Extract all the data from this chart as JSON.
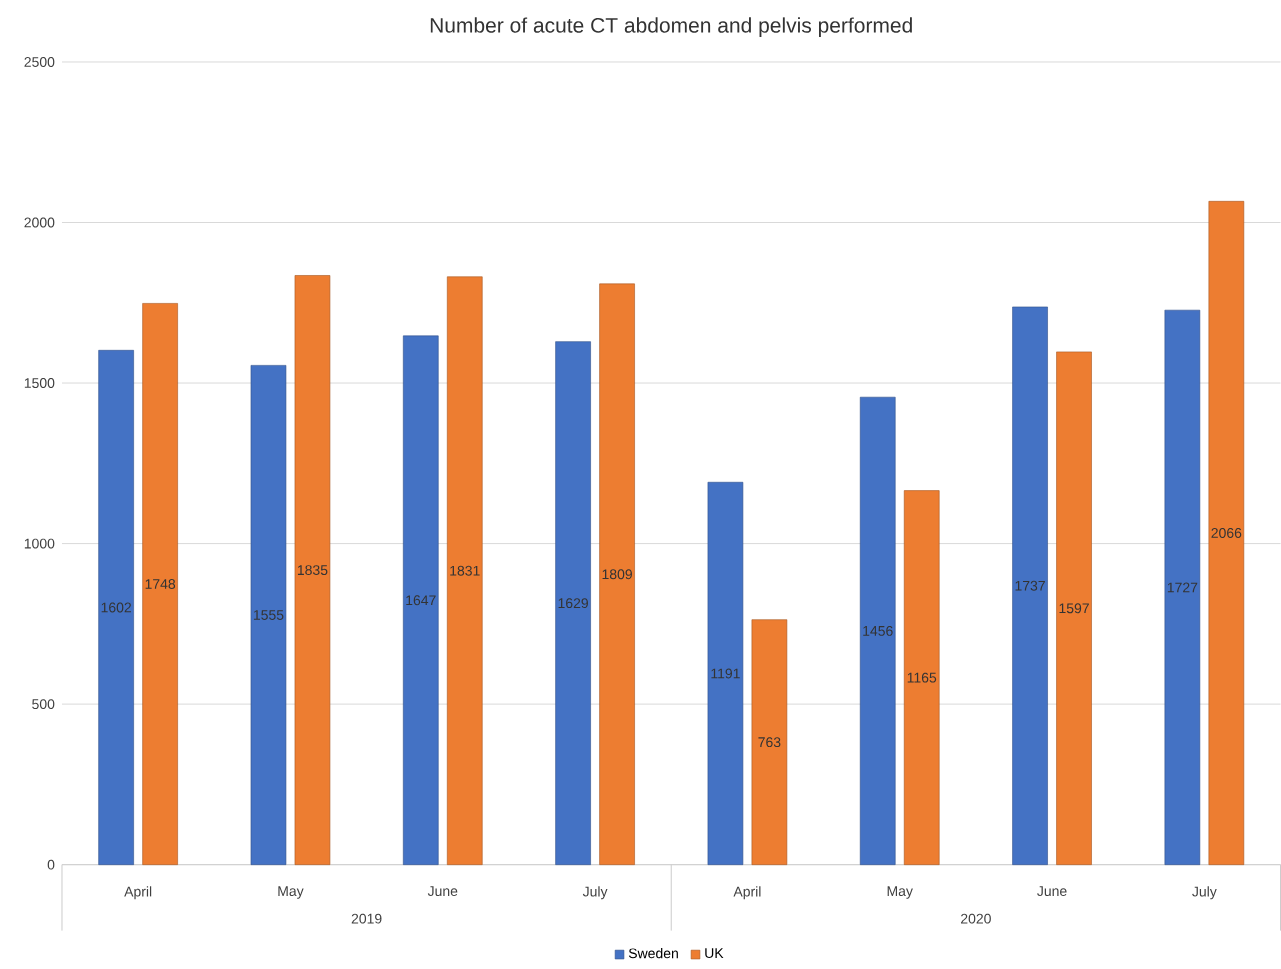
{
  "chart_data": {
    "type": "bar",
    "title": "Number of acute CT abdomen and pelvis performed",
    "categories": [
      "April",
      "May",
      "June",
      "July",
      "April",
      "May",
      "June",
      "July"
    ],
    "series": [
      {
        "name": "Sweden",
        "color": "#4472c4",
        "values": [
          1602,
          1555,
          1647,
          1629,
          1191,
          1456,
          1737,
          1727
        ]
      },
      {
        "name": "UK",
        "color": "#ed7d31",
        "values": [
          1748,
          1835,
          1831,
          1809,
          763,
          1165,
          1597,
          2066
        ]
      }
    ],
    "annotations": [
      "2019",
      "2020"
    ],
    "ylim": [
      0,
      2500
    ],
    "yticks": [
      0,
      500,
      1000,
      1500,
      2000,
      2500
    ],
    "grid": "y",
    "legend": "bottom",
    "data_labels": true
  }
}
